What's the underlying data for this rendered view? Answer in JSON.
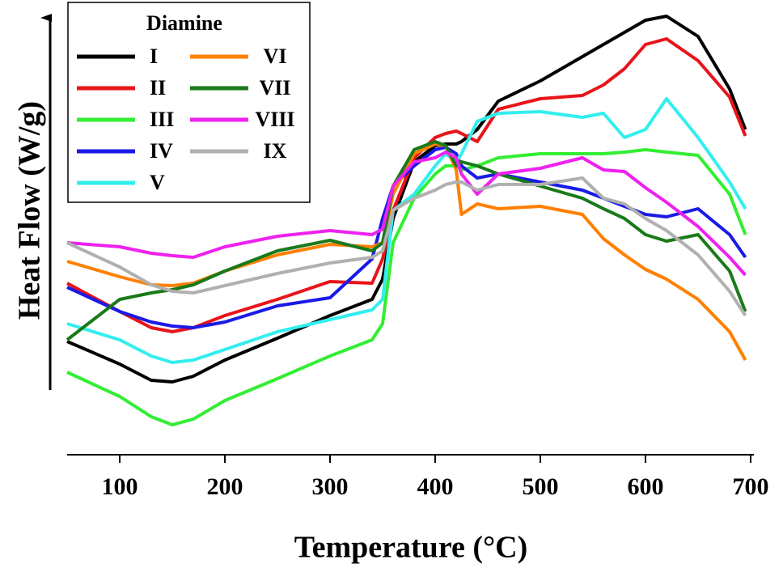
{
  "chart_data": {
    "type": "line",
    "x_label": "Temperature (°C)",
    "y_label": "Heat Flow (W/g)",
    "legend_title": "Diamine",
    "legend": "top-left",
    "xlim": [
      50,
      700
    ],
    "xticks": [
      100,
      200,
      300,
      400,
      500,
      600,
      700
    ],
    "ylim": [
      0,
      110
    ],
    "x": [
      50,
      100,
      130,
      150,
      170,
      200,
      250,
      300,
      340,
      350,
      360,
      380,
      400,
      410,
      420,
      425,
      440,
      460,
      500,
      540,
      560,
      580,
      600,
      620,
      650,
      680,
      695
    ],
    "series": [
      {
        "name": "I",
        "color": "#000000",
        "values": [
          28,
          22.4,
          18.4,
          18,
          19.4,
          23.4,
          28.8,
          34.4,
          38.4,
          43.4,
          58.4,
          72.4,
          76.4,
          76.8,
          76.8,
          77.4,
          80.4,
          87.4,
          92.4,
          98.4,
          101.4,
          104.4,
          107.4,
          108.4,
          103.4,
          90.4,
          80.4
        ]
      },
      {
        "name": "II",
        "color": "#e8141a",
        "values": [
          42.4,
          35.4,
          31.4,
          30.4,
          31.4,
          34.4,
          38.4,
          42.8,
          42.4,
          48.4,
          60.4,
          73.4,
          78.4,
          79.4,
          80,
          79.4,
          77.4,
          85.4,
          88,
          88.8,
          91.4,
          95.4,
          101.4,
          102.8,
          97.4,
          88.4,
          78.8
        ]
      },
      {
        "name": "III",
        "color": "#33ee33",
        "values": [
          20.4,
          14.4,
          9.4,
          7.4,
          8.8,
          13.4,
          18.8,
          24.4,
          28.4,
          32.4,
          52.4,
          63.4,
          69.4,
          71.4,
          71.4,
          70.4,
          71.4,
          73.4,
          74.4,
          74.4,
          74.4,
          74.8,
          75.4,
          74.8,
          74,
          64.4,
          54.4
        ]
      },
      {
        "name": "IV",
        "color": "#1a1ae6",
        "values": [
          41.4,
          35.4,
          32.8,
          31.8,
          31.4,
          32.8,
          36.8,
          38.8,
          48.4,
          58.4,
          66.4,
          71.4,
          75.4,
          76,
          74.4,
          71.4,
          68.4,
          69.4,
          67.4,
          65.4,
          63.4,
          61.4,
          59.4,
          58.8,
          60.8,
          54.4,
          48.8
        ]
      },
      {
        "name": "V",
        "color": "#33eeee",
        "values": [
          32.4,
          28.4,
          24.4,
          22.8,
          23.4,
          26,
          30.4,
          33.4,
          35.8,
          38.4,
          60.4,
          64.4,
          71.4,
          74.4,
          72.4,
          74.4,
          82.4,
          84.4,
          84.8,
          83.4,
          84.4,
          78.4,
          80.4,
          88,
          78.4,
          67.4,
          60.8
        ]
      },
      {
        "name": "VI",
        "color": "#ff8000",
        "values": [
          47.8,
          44,
          42,
          41.8,
          42.4,
          45.4,
          49.4,
          52,
          51.4,
          52.4,
          64.4,
          74.4,
          76.8,
          76.4,
          70.4,
          59.4,
          62,
          60.8,
          61.4,
          59.4,
          53.4,
          49.4,
          45.8,
          43.4,
          38.4,
          30.4,
          23.4
        ]
      },
      {
        "name": "VII",
        "color": "#1a7a1a",
        "values": [
          28.4,
          38.4,
          40,
          40.8,
          42,
          45.4,
          50.4,
          53,
          50.4,
          52.4,
          66.4,
          75.4,
          77.4,
          76.4,
          71.4,
          72.4,
          71.4,
          69.4,
          66.4,
          63.4,
          60.8,
          58.4,
          54.4,
          52.8,
          54.4,
          45.4,
          35.4
        ]
      },
      {
        "name": "VIII",
        "color": "#ee22ee",
        "values": [
          52.4,
          51.4,
          49.8,
          49.2,
          48.8,
          51.4,
          54,
          55.4,
          54.4,
          55.8,
          66.4,
          72.4,
          73.4,
          74.8,
          73.4,
          69.4,
          64.4,
          69.4,
          70.8,
          73.4,
          70.4,
          70,
          66,
          62.4,
          56.4,
          48.8,
          44.4
        ]
      },
      {
        "name": "IX",
        "color": "#b0b0b0",
        "values": [
          52.4,
          46.4,
          42,
          40.4,
          40,
          41.8,
          44.8,
          47.4,
          48.8,
          50.4,
          60.4,
          63.4,
          65.4,
          66.8,
          67.4,
          67.4,
          65.4,
          66.8,
          66.8,
          68.4,
          63.4,
          62,
          58.4,
          55.4,
          49.4,
          40.4,
          34.4
        ]
      }
    ]
  }
}
